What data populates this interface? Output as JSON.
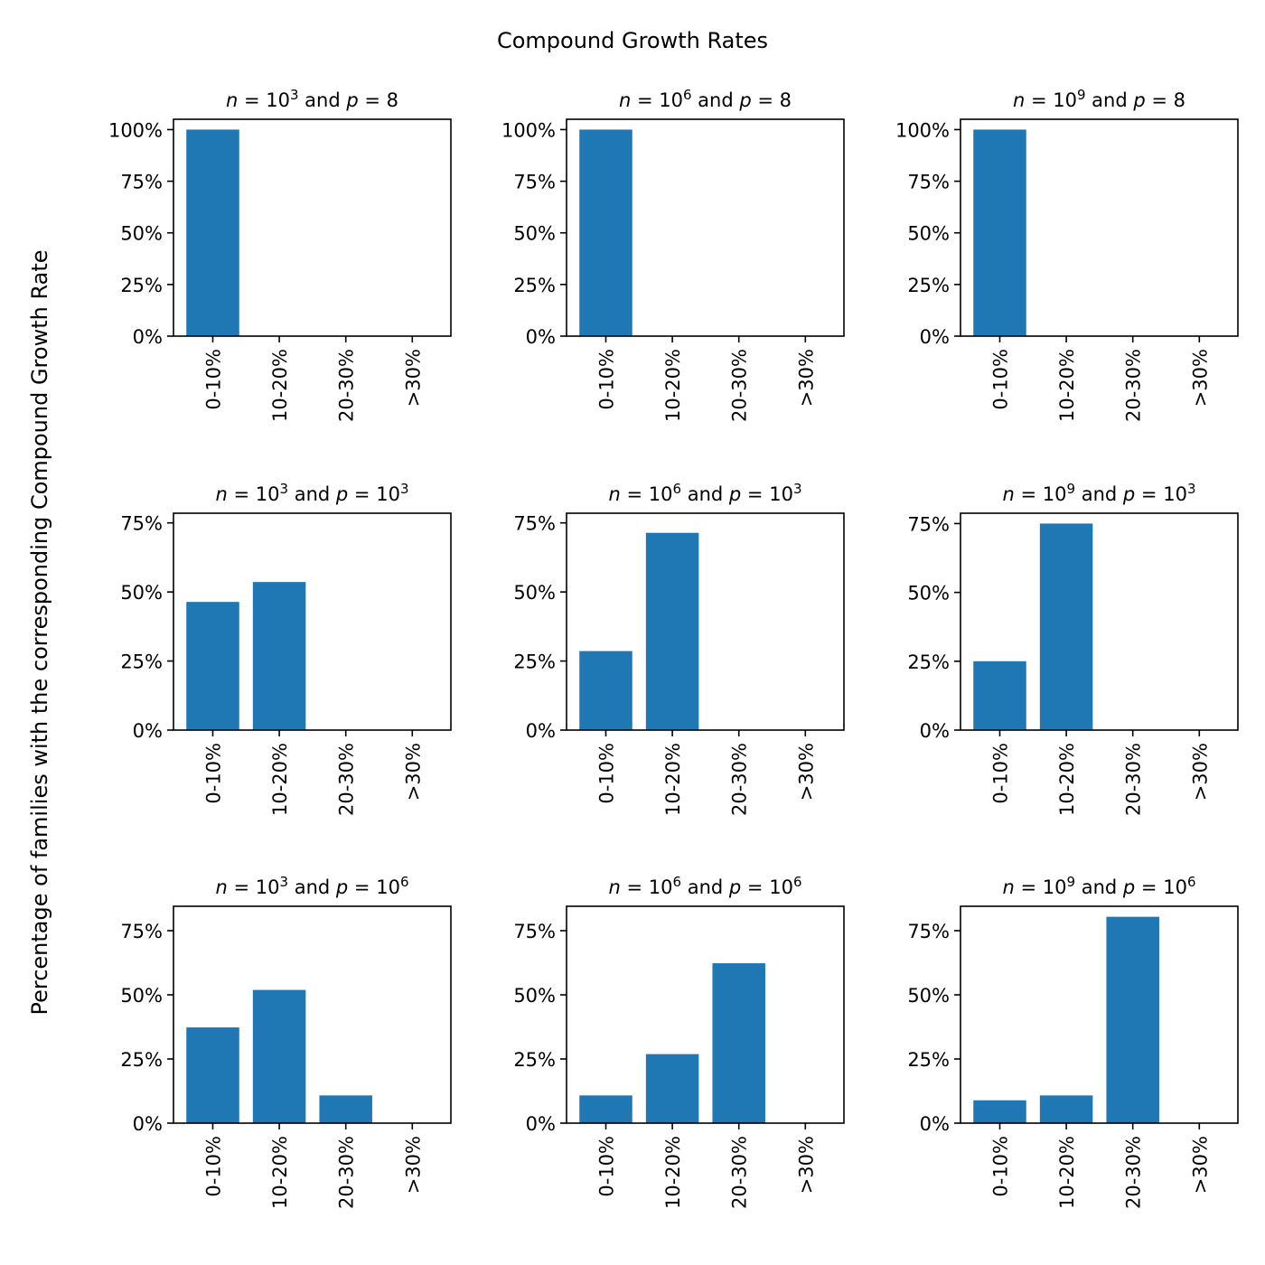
{
  "figure": {
    "suptitle": "Compound Growth Rates",
    "ylabel": "Percentage of families with the corresponding Compound Growth Rate",
    "bar_color": "#1f77b4"
  },
  "chart_data": [
    {
      "type": "bar",
      "title": "n = 10^3 and p = 8",
      "title_parts": {
        "n": "10",
        "n_exp": "3",
        "p": "8",
        "p_exp": ""
      },
      "categories": [
        "0-10%",
        "10-20%",
        "20-30%",
        ">30%"
      ],
      "values": [
        100,
        0,
        0,
        0
      ],
      "ylim": [
        0,
        105
      ],
      "yticks": [
        0,
        25,
        50,
        75,
        100
      ],
      "ytick_labels": [
        "0%",
        "25%",
        "50%",
        "75%",
        "100%"
      ]
    },
    {
      "type": "bar",
      "title": "n = 10^6 and p = 8",
      "title_parts": {
        "n": "10",
        "n_exp": "6",
        "p": "8",
        "p_exp": ""
      },
      "categories": [
        "0-10%",
        "10-20%",
        "20-30%",
        ">30%"
      ],
      "values": [
        100,
        0,
        0,
        0
      ],
      "ylim": [
        0,
        105
      ],
      "yticks": [
        0,
        25,
        50,
        75,
        100
      ],
      "ytick_labels": [
        "0%",
        "25%",
        "50%",
        "75%",
        "100%"
      ]
    },
    {
      "type": "bar",
      "title": "n = 10^9 and p = 8",
      "title_parts": {
        "n": "10",
        "n_exp": "9",
        "p": "8",
        "p_exp": ""
      },
      "categories": [
        "0-10%",
        "10-20%",
        "20-30%",
        ">30%"
      ],
      "values": [
        100,
        0,
        0,
        0
      ],
      "ylim": [
        0,
        105
      ],
      "yticks": [
        0,
        25,
        50,
        75,
        100
      ],
      "ytick_labels": [
        "0%",
        "25%",
        "50%",
        "75%",
        "100%"
      ]
    },
    {
      "type": "bar",
      "title": "n = 10^3 and p = 10^3",
      "title_parts": {
        "n": "10",
        "n_exp": "3",
        "p": "10",
        "p_exp": "3"
      },
      "categories": [
        "0-10%",
        "10-20%",
        "20-30%",
        ">30%"
      ],
      "values": [
        46.4,
        53.6,
        0,
        0
      ],
      "ylim": [
        0,
        78.5
      ],
      "yticks": [
        0,
        25,
        50,
        75
      ],
      "ytick_labels": [
        "0%",
        "25%",
        "50%",
        "75%"
      ]
    },
    {
      "type": "bar",
      "title": "n = 10^6 and p = 10^3",
      "title_parts": {
        "n": "10",
        "n_exp": "6",
        "p": "10",
        "p_exp": "3"
      },
      "categories": [
        "0-10%",
        "10-20%",
        "20-30%",
        ">30%"
      ],
      "values": [
        28.6,
        71.4,
        0,
        0
      ],
      "ylim": [
        0,
        78.5
      ],
      "yticks": [
        0,
        25,
        50,
        75
      ],
      "ytick_labels": [
        "0%",
        "25%",
        "50%",
        "75%"
      ]
    },
    {
      "type": "bar",
      "title": "n = 10^9 and p = 10^3",
      "title_parts": {
        "n": "10",
        "n_exp": "9",
        "p": "10",
        "p_exp": "3"
      },
      "categories": [
        "0-10%",
        "10-20%",
        "20-30%",
        ">30%"
      ],
      "values": [
        25,
        75,
        0,
        0
      ],
      "ylim": [
        0,
        78.75
      ],
      "yticks": [
        0,
        25,
        50,
        75
      ],
      "ytick_labels": [
        "0%",
        "25%",
        "50%",
        "75%"
      ]
    },
    {
      "type": "bar",
      "title": "n = 10^3 and p = 10^6",
      "title_parts": {
        "n": "10",
        "n_exp": "3",
        "p": "10",
        "p_exp": "6"
      },
      "categories": [
        "0-10%",
        "10-20%",
        "20-30%",
        ">30%"
      ],
      "values": [
        37.3,
        51.9,
        10.8,
        0
      ],
      "ylim": [
        0,
        84.5
      ],
      "yticks": [
        0,
        25,
        50,
        75
      ],
      "ytick_labels": [
        "0%",
        "25%",
        "50%",
        "75%"
      ]
    },
    {
      "type": "bar",
      "title": "n = 10^6 and p = 10^6",
      "title_parts": {
        "n": "10",
        "n_exp": "6",
        "p": "10",
        "p_exp": "6"
      },
      "categories": [
        "0-10%",
        "10-20%",
        "20-30%",
        ">30%"
      ],
      "values": [
        10.8,
        26.9,
        62.3,
        0
      ],
      "ylim": [
        0,
        84.5
      ],
      "yticks": [
        0,
        25,
        50,
        75
      ],
      "ytick_labels": [
        "0%",
        "25%",
        "50%",
        "75%"
      ]
    },
    {
      "type": "bar",
      "title": "n = 10^9 and p = 10^6",
      "title_parts": {
        "n": "10",
        "n_exp": "9",
        "p": "10",
        "p_exp": "6"
      },
      "categories": [
        "0-10%",
        "10-20%",
        "20-30%",
        ">30%"
      ],
      "values": [
        8.9,
        10.8,
        80.4,
        0
      ],
      "ylim": [
        0,
        84.5
      ],
      "yticks": [
        0,
        25,
        50,
        75
      ],
      "ytick_labels": [
        "0%",
        "25%",
        "50%",
        "75%"
      ]
    }
  ]
}
